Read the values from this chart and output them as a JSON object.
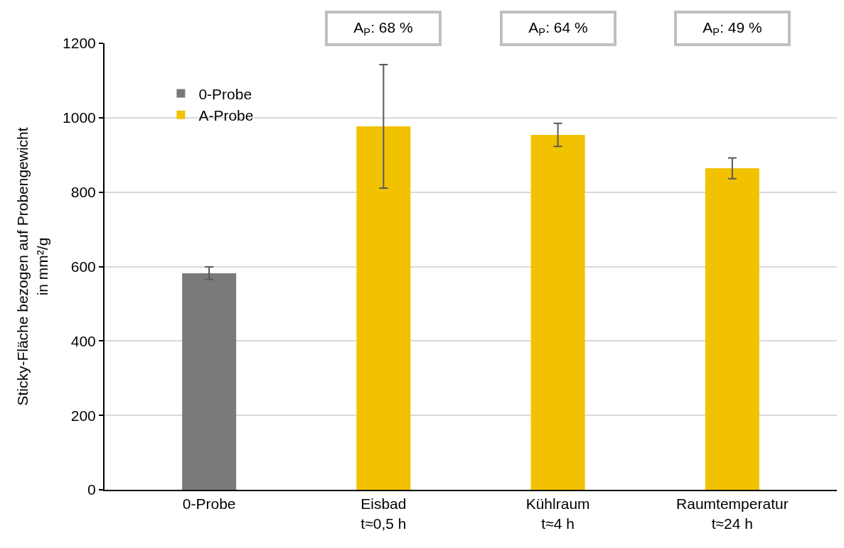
{
  "chart_data": {
    "type": "bar",
    "ylabel": "Sticky-Fläche bezogen auf Probengewicht\nin mm²/g",
    "categories": [
      "0-Probe",
      "Eisbad\nt≈0,5 h",
      "Kühlraum\nt≈4 h",
      "Raumtemperatur\nt≈24 h"
    ],
    "series": [
      {
        "name": "0-Probe",
        "color": "#7a7a7a",
        "values": [
          582,
          null,
          null,
          null
        ],
        "errors": [
          17,
          null,
          null,
          null
        ]
      },
      {
        "name": "A-Probe",
        "color": "#f2c200",
        "values": [
          null,
          977,
          954,
          864
        ],
        "errors": [
          null,
          166,
          31,
          28
        ]
      }
    ],
    "ylim": [
      0,
      1200
    ],
    "yticks": [
      0,
      200,
      400,
      600,
      800,
      1000,
      1200
    ],
    "grid": "y",
    "legend": "top left",
    "annotations": [
      "A$_{P}$: 68 %",
      "A$_{P}$: 64 %",
      "A$_{P}$: 49 %"
    ]
  }
}
